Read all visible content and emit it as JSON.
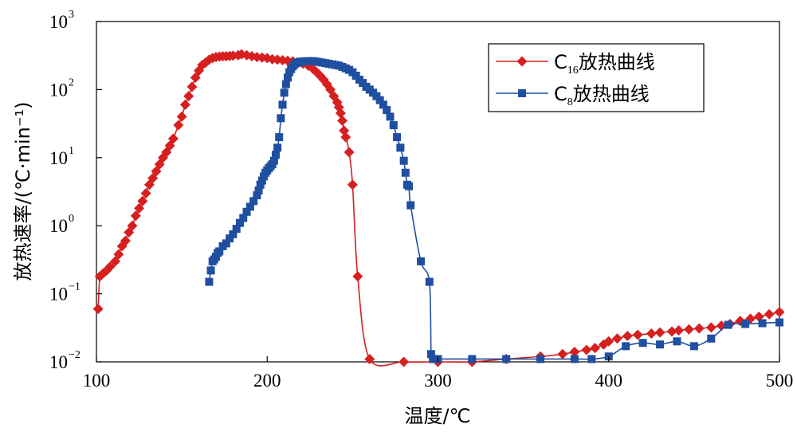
{
  "chart_data": {
    "type": "line",
    "xlabel": "温度/℃",
    "ylabel": "放热速率/(℃·min⁻¹)",
    "xlim": [
      100,
      500
    ],
    "ylim": [
      0.01,
      1000
    ],
    "y_scale": "log",
    "x_ticks": [
      "100",
      "200",
      "300",
      "400",
      "500"
    ],
    "y_ticks": [
      {
        "base": "10",
        "exp": "−2"
      },
      {
        "base": "10",
        "exp": "−1"
      },
      {
        "base": "10",
        "exp": "0"
      },
      {
        "base": "10",
        "exp": "1"
      },
      {
        "base": "10",
        "exp": "2"
      },
      {
        "base": "10",
        "exp": "3"
      }
    ],
    "legend_position": "top-right",
    "series": [
      {
        "name": "C16放热曲线",
        "legend_main": "C",
        "legend_sub": "16",
        "legend_rest": "放热曲线",
        "color": "#d62020",
        "marker": "diamond",
        "x": [
          101,
          102,
          104,
          106,
          108,
          111,
          113,
          115,
          117,
          119,
          121,
          123,
          125,
          127,
          129,
          131,
          133,
          135,
          137,
          139,
          141,
          143,
          145,
          148,
          150,
          152,
          154,
          156,
          158,
          160,
          162,
          164,
          166,
          168,
          170,
          172,
          174,
          176,
          178,
          180,
          183,
          185,
          188,
          191,
          194,
          197,
          200,
          203,
          206,
          209,
          212,
          215,
          218,
          221,
          224,
          227,
          229,
          231,
          233,
          235,
          237,
          239,
          241,
          242,
          243,
          244,
          245,
          246,
          248,
          250,
          253,
          260,
          280,
          300,
          320,
          340,
          360,
          373,
          380,
          387,
          392,
          397,
          400,
          405,
          411,
          417,
          425,
          430,
          437,
          441,
          447,
          453,
          460,
          466,
          471,
          477,
          483,
          488,
          494,
          500
        ],
        "y": [
          0.06,
          0.18,
          0.2,
          0.22,
          0.25,
          0.3,
          0.38,
          0.5,
          0.6,
          0.8,
          1.0,
          1.4,
          1.8,
          2.3,
          3.0,
          4.0,
          5.0,
          6.3,
          8.0,
          10,
          12,
          15,
          19,
          30,
          40,
          60,
          80,
          110,
          150,
          190,
          230,
          250,
          275,
          290,
          300,
          305,
          308,
          310,
          312,
          315,
          320,
          330,
          320,
          310,
          300,
          295,
          290,
          280,
          275,
          270,
          265,
          260,
          250,
          240,
          225,
          200,
          180,
          160,
          140,
          120,
          100,
          80,
          65,
          55,
          45,
          35,
          25,
          20,
          12,
          4,
          0.18,
          0.011,
          0.01,
          0.01,
          0.01,
          0.011,
          0.012,
          0.013,
          0.014,
          0.015,
          0.016,
          0.018,
          0.02,
          0.022,
          0.024,
          0.025,
          0.026,
          0.027,
          0.028,
          0.029,
          0.03,
          0.031,
          0.032,
          0.034,
          0.036,
          0.04,
          0.043,
          0.046,
          0.05,
          0.054
        ]
      },
      {
        "name": "C8放热曲线",
        "legend_main": "C",
        "legend_sub": "8",
        "legend_rest": "放热曲线",
        "color": "#1f4fa0",
        "marker": "square",
        "x": [
          166,
          167,
          168,
          169,
          170,
          171,
          172,
          174,
          176,
          178,
          180,
          182,
          184,
          186,
          188,
          190,
          192,
          194,
          195,
          196,
          197,
          198,
          199,
          200,
          201,
          202,
          203,
          204,
          205,
          206,
          207,
          208,
          209,
          210,
          211,
          212,
          213,
          214,
          215,
          216,
          217,
          218,
          219,
          220,
          222,
          224,
          226,
          228,
          230,
          232,
          234,
          236,
          238,
          240,
          242,
          244,
          246,
          248,
          250,
          252,
          254,
          256,
          258,
          260,
          262,
          264,
          266,
          268,
          270,
          272,
          274,
          276,
          278,
          280,
          281,
          282,
          283,
          284,
          290,
          295,
          296,
          297,
          298,
          300,
          320,
          340,
          360,
          380,
          390,
          400,
          410,
          420,
          430,
          440,
          450,
          460,
          470,
          480,
          490,
          500
        ],
        "y": [
          0.15,
          0.22,
          0.3,
          0.32,
          0.35,
          0.4,
          0.42,
          0.5,
          0.55,
          0.65,
          0.75,
          0.9,
          1.1,
          1.3,
          1.6,
          1.9,
          2.3,
          2.8,
          3.3,
          4.0,
          4.6,
          5.3,
          6.0,
          6.5,
          7.0,
          7.5,
          8.0,
          9.0,
          11,
          14,
          20,
          38,
          60,
          90,
          120,
          150,
          180,
          200,
          220,
          235,
          245,
          250,
          255,
          258,
          260,
          262,
          262,
          260,
          255,
          250,
          245,
          240,
          235,
          230,
          225,
          215,
          205,
          195,
          180,
          160,
          140,
          125,
          110,
          100,
          90,
          80,
          70,
          60,
          50,
          40,
          30,
          20,
          14,
          9,
          6,
          4,
          3.8,
          2,
          0.3,
          0.15,
          0.013,
          0.011,
          0.011,
          0.011,
          0.011,
          0.011,
          0.011,
          0.011,
          0.011,
          0.012,
          0.017,
          0.019,
          0.018,
          0.02,
          0.017,
          0.022,
          0.035,
          0.036,
          0.037,
          0.038
        ]
      }
    ]
  }
}
